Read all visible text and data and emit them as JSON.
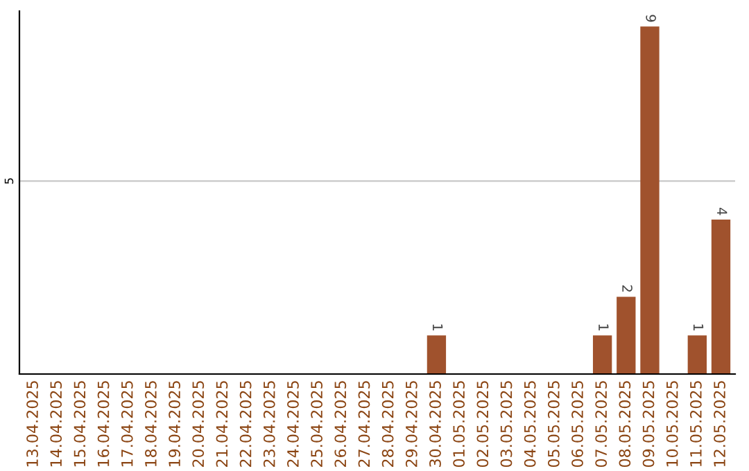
{
  "chart_data": {
    "type": "bar",
    "categories": [
      "13.04.2025",
      "14.04.2025",
      "15.04.2025",
      "16.04.2025",
      "17.04.2025",
      "18.04.2025",
      "19.04.2025",
      "20.04.2025",
      "21.04.2025",
      "22.04.2025",
      "23.04.2025",
      "24.04.2025",
      "25.04.2025",
      "26.04.2025",
      "27.04.2025",
      "28.04.2025",
      "29.04.2025",
      "30.04.2025",
      "01.05.2025",
      "02.05.2025",
      "03.05.2025",
      "04.05.2025",
      "05.05.2025",
      "06.05.2025",
      "07.05.2025",
      "08.05.2025",
      "09.05.2025",
      "10.05.2025",
      "11.05.2025",
      "12.05.2025"
    ],
    "values": [
      null,
      null,
      null,
      null,
      null,
      null,
      null,
      null,
      null,
      null,
      null,
      null,
      null,
      null,
      null,
      null,
      null,
      1,
      null,
      null,
      null,
      null,
      null,
      null,
      1,
      2,
      9,
      null,
      1,
      4
    ],
    "data_labels": true,
    "color": "#a0522d",
    "ylim": [
      0,
      9.4
    ],
    "yticks": [
      5
    ],
    "grid": "y"
  }
}
